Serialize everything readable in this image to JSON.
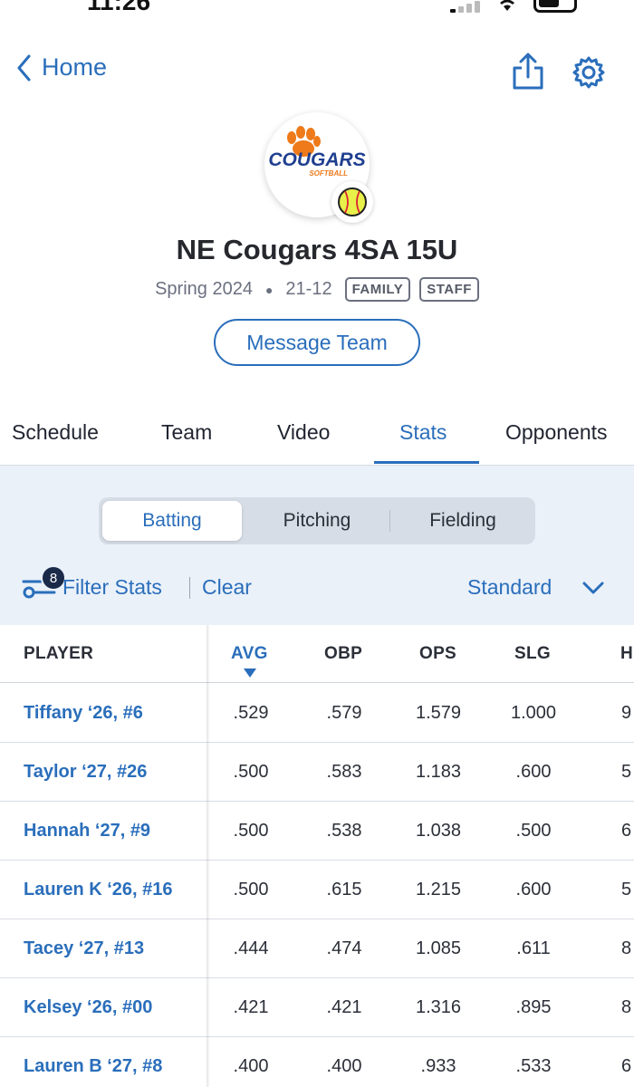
{
  "status": {
    "time": "11:26"
  },
  "nav": {
    "back_label": "Home"
  },
  "team": {
    "name": "NE Cougars 4SA 15U",
    "season": "Spring 2024",
    "record": "21-12",
    "badges": [
      "FAMILY",
      "STAFF"
    ],
    "message_button": "Message Team",
    "logo_text": "COUGARS",
    "logo_subtext": "SOFTBALL",
    "colors": {
      "navy": "#1f3f8f",
      "orange": "#ee7a1a"
    }
  },
  "tabs": [
    {
      "label": "Schedule",
      "active": false
    },
    {
      "label": "Team",
      "active": false
    },
    {
      "label": "Video",
      "active": false
    },
    {
      "label": "Stats",
      "active": true
    },
    {
      "label": "Opponents",
      "active": false
    }
  ],
  "segments": [
    {
      "label": "Batting",
      "active": true
    },
    {
      "label": "Pitching",
      "active": false
    },
    {
      "label": "Fielding",
      "active": false
    }
  ],
  "filter": {
    "count": "8",
    "label": "Filter Stats",
    "clear": "Clear",
    "view": "Standard"
  },
  "table": {
    "columns": [
      "PLAYER",
      "AVG",
      "OBP",
      "OPS",
      "SLG",
      "H"
    ],
    "sorted_column": "AVG",
    "rows": [
      {
        "player": "Tiffany ‘26, #6",
        "avg": ".529",
        "obp": ".579",
        "ops": "1.579",
        "slg": "1.000",
        "h": "9"
      },
      {
        "player": "Taylor ‘27, #26",
        "avg": ".500",
        "obp": ".583",
        "ops": "1.183",
        "slg": ".600",
        "h": "5"
      },
      {
        "player": "Hannah ‘27, #9",
        "avg": ".500",
        "obp": ".538",
        "ops": "1.038",
        "slg": ".500",
        "h": "6"
      },
      {
        "player": "Lauren K ‘26, #16",
        "avg": ".500",
        "obp": ".615",
        "ops": "1.215",
        "slg": ".600",
        "h": "5"
      },
      {
        "player": "Tacey ‘27, #13",
        "avg": ".444",
        "obp": ".474",
        "ops": "1.085",
        "slg": ".611",
        "h": "8"
      },
      {
        "player": "Kelsey ‘26, #00",
        "avg": ".421",
        "obp": ".421",
        "ops": "1.316",
        "slg": ".895",
        "h": "8"
      },
      {
        "player": "Lauren B ‘27, #8",
        "avg": ".400",
        "obp": ".400",
        "ops": ".933",
        "slg": ".533",
        "h": "6"
      }
    ]
  },
  "colors": {
    "accent": "#2a6ebb",
    "panel": "#eaf1f9"
  }
}
